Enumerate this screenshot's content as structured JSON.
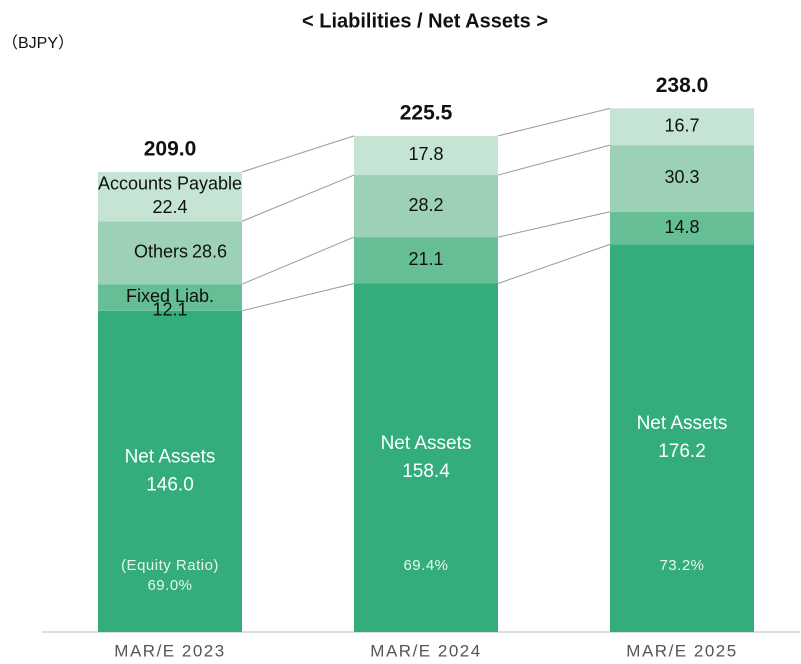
{
  "chart_data": {
    "type": "stacked_bar",
    "title": "< Liabilities / Net Assets >",
    "unit": "（BJPY）",
    "categories": [
      "MAR/E 2023",
      "MAR/E 2024",
      "MAR/E 2025"
    ],
    "series": [
      {
        "name": "Net Assets",
        "color": "#33ad7b",
        "values": [
          146.0,
          158.4,
          176.2
        ],
        "value_labels": [
          "146.0",
          "158.4",
          "176.2"
        ]
      },
      {
        "name": "Fixed Liab.",
        "color": "#66bf94",
        "values": [
          12.1,
          21.1,
          14.8
        ],
        "value_labels": [
          "12.1",
          "21.1",
          "14.8"
        ]
      },
      {
        "name": "Others",
        "color": "#9dd1b5",
        "values": [
          28.6,
          28.2,
          30.3
        ],
        "value_labels": [
          "28.6",
          "28.2",
          "30.3"
        ]
      },
      {
        "name": "Accounts Payable",
        "color": "#c5e4d4",
        "values": [
          22.4,
          17.8,
          16.7
        ],
        "value_labels": [
          "22.4",
          "17.8",
          "16.7"
        ]
      }
    ],
    "totals": {
      "values": [
        209.0,
        225.5,
        238.0
      ],
      "value_labels": [
        "209.0",
        "225.5",
        "238.0"
      ]
    },
    "equity_ratio": {
      "name": "(Equity Ratio)",
      "values": [
        69.0,
        69.4,
        73.2
      ],
      "value_labels": [
        "69.0%",
        "69.4%",
        "73.2%"
      ]
    },
    "ylim": [
      0,
      250
    ]
  }
}
